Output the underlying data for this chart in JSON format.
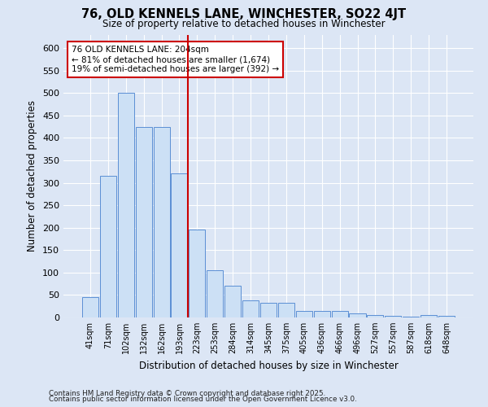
{
  "title": "76, OLD KENNELS LANE, WINCHESTER, SO22 4JT",
  "subtitle": "Size of property relative to detached houses in Winchester",
  "xlabel": "Distribution of detached houses by size in Winchester",
  "ylabel": "Number of detached properties",
  "categories": [
    "41sqm",
    "71sqm",
    "102sqm",
    "132sqm",
    "162sqm",
    "193sqm",
    "223sqm",
    "253sqm",
    "284sqm",
    "314sqm",
    "345sqm",
    "375sqm",
    "405sqm",
    "436sqm",
    "466sqm",
    "496sqm",
    "527sqm",
    "557sqm",
    "587sqm",
    "618sqm",
    "648sqm"
  ],
  "values": [
    46,
    315,
    500,
    425,
    425,
    320,
    195,
    105,
    70,
    38,
    33,
    33,
    14,
    14,
    15,
    9,
    5,
    4,
    2,
    5,
    4
  ],
  "bar_color": "#cce0f5",
  "bar_edge_color": "#5b8fd4",
  "background_color": "#dce6f5",
  "grid_color": "#ffffff",
  "red_line_x": 6.0,
  "annotation_line1": "76 OLD KENNELS LANE: 204sqm",
  "annotation_line2": "← 81% of detached houses are smaller (1,674)",
  "annotation_line3": "19% of semi-detached houses are larger (392) →",
  "annotation_box_color": "#ffffff",
  "annotation_box_edge": "#cc0000",
  "footnote1": "Contains HM Land Registry data © Crown copyright and database right 2025.",
  "footnote2": "Contains public sector information licensed under the Open Government Licence v3.0.",
  "ylim": [
    0,
    630
  ],
  "yticks": [
    0,
    50,
    100,
    150,
    200,
    250,
    300,
    350,
    400,
    450,
    500,
    550,
    600
  ]
}
